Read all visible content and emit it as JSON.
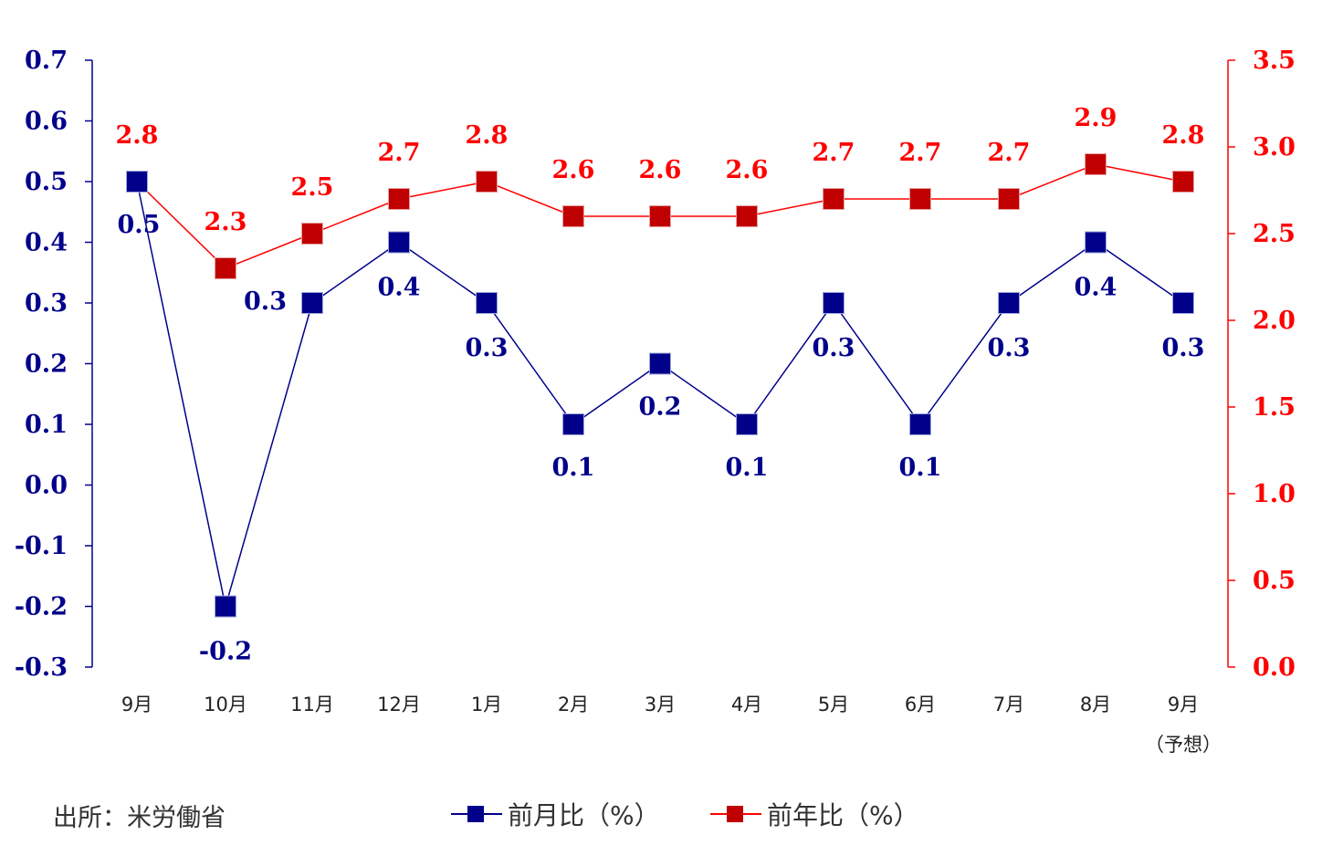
{
  "chart_data": {
    "type": "line",
    "categories": [
      "9月",
      "10月",
      "11月",
      "12月",
      "1月",
      "2月",
      "3月",
      "4月",
      "5月",
      "6月",
      "7月",
      "8月",
      "9月"
    ],
    "category_note": "（予想）",
    "series": [
      {
        "name": "前月比（%）",
        "axis": "left",
        "color": "#00008B",
        "values": [
          0.5,
          -0.2,
          0.3,
          0.4,
          0.3,
          0.1,
          0.2,
          0.1,
          0.3,
          0.1,
          0.3,
          0.4,
          0.3
        ]
      },
      {
        "name": "前年比（%）",
        "axis": "right",
        "color": "#FF0000",
        "marker_color": "#C00000",
        "values": [
          2.8,
          2.3,
          2.5,
          2.7,
          2.8,
          2.6,
          2.6,
          2.6,
          2.7,
          2.7,
          2.7,
          2.9,
          2.8
        ]
      }
    ],
    "left_axis": {
      "ylim": [
        -0.3,
        0.7
      ],
      "ticks": [
        "0.7",
        "0.6",
        "0.5",
        "0.4",
        "0.3",
        "0.2",
        "0.1",
        "0.0",
        "-0.1",
        "-0.2",
        "-0.3"
      ]
    },
    "right_axis": {
      "ylim": [
        0.0,
        3.5
      ],
      "ticks": [
        "3.5",
        "3.0",
        "2.5",
        "2.0",
        "1.5",
        "1.0",
        "0.5",
        "0.0"
      ]
    },
    "grid": false,
    "legend": "bottom",
    "mom_labels": [
      "0.5",
      "-0.2",
      "0.3",
      "0.4",
      "0.3",
      "0.1",
      "0.2",
      "0.1",
      "0.3",
      "0.1",
      "0.3",
      "0.4",
      "0.3"
    ],
    "yoy_labels": [
      "2.8",
      "2.3",
      "2.5",
      "2.7",
      "2.8",
      "2.6",
      "2.6",
      "2.6",
      "2.7",
      "2.7",
      "2.7",
      "2.9",
      "2.8"
    ]
  },
  "source_note": "出所：米労働省",
  "legend": {
    "mom": "前月比（%）",
    "yoy": "前年比（%）"
  }
}
